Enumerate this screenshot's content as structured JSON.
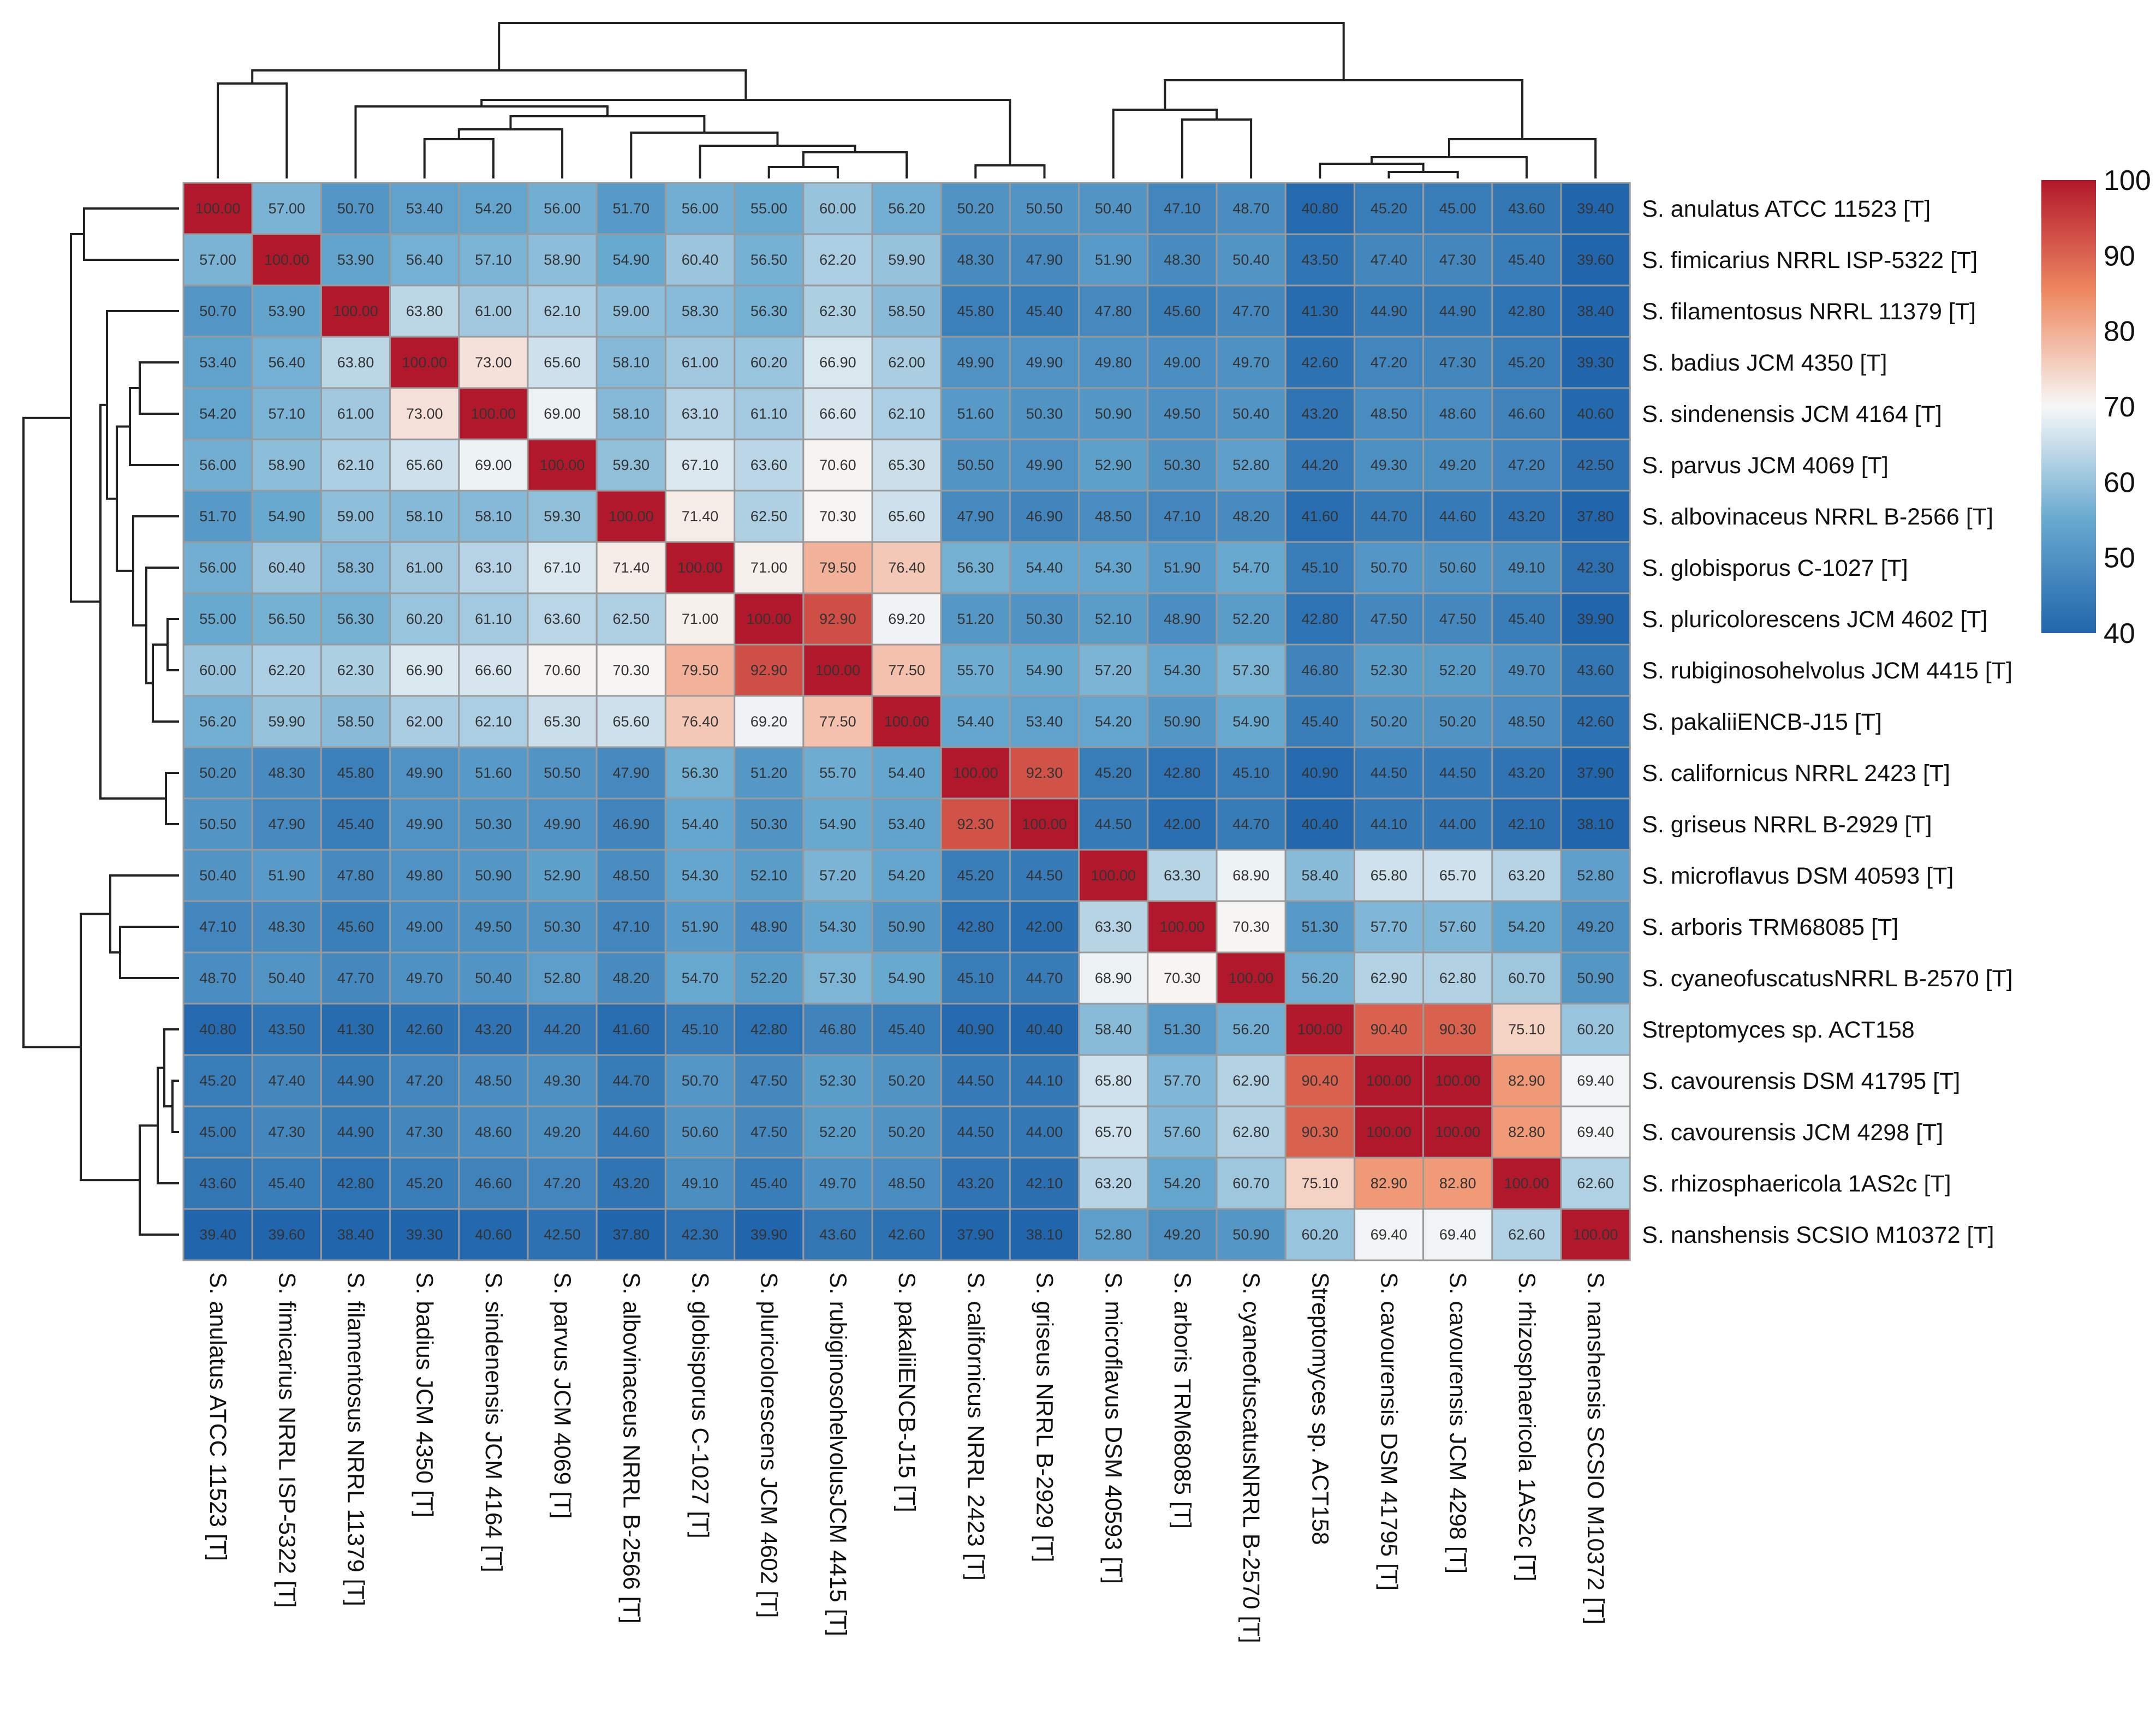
{
  "chart_data": {
    "type": "heatmap",
    "title": "",
    "labels": [
      "S.  anulatus ATCC 11523 [T]",
      "S.  fimicarius NRRL ISP-5322 [T]",
      "S.  filamentosus NRRL 11379 [T]",
      "S.  badius JCM 4350 [T]",
      "S.  sindenensis JCM 4164 [T]",
      "S.  parvus JCM 4069 [T]",
      "S.  albovinaceus NRRL B-2566 [T]",
      "S.  globisporus C-1027 [T]",
      "S.  pluricolorescens JCM 4602 [T]",
      "S.  rubiginosohelvolus JCM 4415 [T]",
      "S.  pakaliiENCB-J15 [T]",
      "S.  californicus NRRL 2423 [T]",
      "S.  griseus NRRL B-2929 [T]",
      "S.  microflavus DSM 40593 [T]",
      "S.  arboris TRM68085 [T]",
      "S.  cyaneofuscatusNRRL B-2570 [T]",
      "Streptomyces  sp. ACT158",
      "S.  cavourensis DSM 41795 [T]",
      "S.  cavourensis JCM 4298 [T]",
      "S.  rhizosphaericola 1AS2c [T]",
      "S.  nanshensis SCSIO M10372 [T]"
    ],
    "column_labels": [
      "S.  anulatus ATCC 11523 [T]",
      "S.  fimicarius NRRL ISP-5322 [T]",
      "S.  filamentosus NRRL 11379 [T]",
      "S.  badius JCM 4350 [T]",
      "S.  sindenensis JCM 4164 [T]",
      "S.  parvus JCM 4069 [T]",
      "S.  albovinaceus NRRL B-2566 [T]",
      "S.  globisporus C-1027 [T]",
      "S.  pluricolorescens JCM 4602 [T]",
      "S.  rubiginosohelvolusJCM 4415 [T]",
      "S.  pakaliiENCB-J15 [T]",
      "S.  californicus NRRL 2423 [T]",
      "S.  griseus NRRL B-2929 [T]",
      "S.  microflavus DSM 40593 [T]",
      "S.  arboris TRM68085 [T]",
      "S.  cyaneofuscatusNRRL B-2570 [T]",
      "Streptomyces  sp. ACT158",
      "S.  cavourensis DSM 41795 [T]",
      "S.  cavourensis JCM 4298 [T]",
      "S.  rhizosphaericola 1AS2c [T]",
      "S.  nanshensis SCSIO M10372 [T]"
    ],
    "values": [
      [
        100,
        57.0,
        50.7,
        53.4,
        54.2,
        56.0,
        51.7,
        56.0,
        55.0,
        60.0,
        56.2,
        50.2,
        50.5,
        50.4,
        47.1,
        48.7,
        40.8,
        45.2,
        45.0,
        43.6,
        39.4
      ],
      [
        57.0,
        100,
        53.9,
        56.4,
        57.1,
        58.9,
        54.9,
        60.4,
        56.5,
        62.2,
        59.9,
        48.3,
        47.9,
        51.9,
        48.3,
        50.4,
        43.5,
        47.4,
        47.3,
        45.4,
        39.6
      ],
      [
        50.7,
        53.9,
        100,
        63.8,
        61.0,
        62.1,
        59.0,
        58.3,
        56.3,
        62.3,
        58.5,
        45.8,
        45.4,
        47.8,
        45.6,
        47.7,
        41.3,
        44.9,
        44.9,
        42.8,
        38.4
      ],
      [
        53.4,
        56.4,
        63.8,
        100,
        73.0,
        65.6,
        58.1,
        61.0,
        60.2,
        66.9,
        62.0,
        49.9,
        49.9,
        49.8,
        49.0,
        49.7,
        42.6,
        47.2,
        47.3,
        45.2,
        39.3
      ],
      [
        54.2,
        57.1,
        61.0,
        73.0,
        100,
        69.0,
        58.1,
        63.1,
        61.1,
        66.6,
        62.1,
        51.6,
        50.3,
        50.9,
        49.5,
        50.4,
        43.2,
        48.5,
        48.6,
        46.6,
        40.6
      ],
      [
        56.0,
        58.9,
        62.1,
        65.6,
        69.0,
        100,
        59.3,
        67.1,
        63.6,
        70.6,
        65.3,
        50.5,
        49.9,
        52.9,
        50.3,
        52.8,
        44.2,
        49.3,
        49.2,
        47.2,
        42.5
      ],
      [
        51.7,
        54.9,
        59.0,
        58.1,
        58.1,
        59.3,
        100,
        71.4,
        62.5,
        70.3,
        65.6,
        47.9,
        46.9,
        48.5,
        47.1,
        48.2,
        41.6,
        44.7,
        44.6,
        43.2,
        37.8
      ],
      [
        56.0,
        60.4,
        58.3,
        61.0,
        63.1,
        67.1,
        71.4,
        100,
        71.0,
        79.5,
        76.4,
        56.3,
        54.4,
        54.3,
        51.9,
        54.7,
        45.1,
        50.7,
        50.6,
        49.1,
        42.3
      ],
      [
        55.0,
        56.5,
        56.3,
        60.2,
        61.1,
        63.6,
        62.5,
        71.0,
        100,
        92.9,
        69.2,
        51.2,
        50.3,
        52.1,
        48.9,
        52.2,
        42.8,
        47.5,
        47.5,
        45.4,
        39.9
      ],
      [
        60.0,
        62.2,
        62.3,
        66.9,
        66.6,
        70.6,
        70.3,
        79.5,
        92.9,
        100,
        77.5,
        55.7,
        54.9,
        57.2,
        54.3,
        57.3,
        46.8,
        52.3,
        52.2,
        49.7,
        43.6
      ],
      [
        56.2,
        59.9,
        58.5,
        62.0,
        62.1,
        65.3,
        65.6,
        76.4,
        69.2,
        77.5,
        100,
        54.4,
        53.4,
        54.2,
        50.9,
        54.9,
        45.4,
        50.2,
        50.2,
        48.5,
        42.6
      ],
      [
        50.2,
        48.3,
        45.8,
        49.9,
        51.6,
        50.5,
        47.9,
        56.3,
        51.2,
        55.7,
        54.4,
        100,
        92.3,
        45.2,
        42.8,
        45.1,
        40.9,
        44.5,
        44.5,
        43.2,
        37.9
      ],
      [
        50.5,
        47.9,
        45.4,
        49.9,
        50.3,
        49.9,
        46.9,
        54.4,
        50.3,
        54.9,
        53.4,
        92.3,
        100,
        44.5,
        42.0,
        44.7,
        40.4,
        44.1,
        44.0,
        42.1,
        38.1
      ],
      [
        50.4,
        51.9,
        47.8,
        49.8,
        50.9,
        52.9,
        48.5,
        54.3,
        52.1,
        57.2,
        54.2,
        45.2,
        44.5,
        100,
        63.3,
        68.9,
        58.4,
        65.8,
        65.7,
        63.2,
        52.8
      ],
      [
        47.1,
        48.3,
        45.6,
        49.0,
        49.5,
        50.3,
        47.1,
        51.9,
        48.9,
        54.3,
        50.9,
        42.8,
        42.0,
        63.3,
        100,
        70.3,
        51.3,
        57.7,
        57.6,
        54.2,
        49.2
      ],
      [
        48.7,
        50.4,
        47.7,
        49.7,
        50.4,
        52.8,
        48.2,
        54.7,
        52.2,
        57.3,
        54.9,
        45.1,
        44.7,
        68.9,
        70.3,
        100,
        56.2,
        62.9,
        62.8,
        60.7,
        50.9
      ],
      [
        40.8,
        43.5,
        41.3,
        42.6,
        43.2,
        44.2,
        41.6,
        45.1,
        42.8,
        46.8,
        45.4,
        40.9,
        40.4,
        58.4,
        51.3,
        56.2,
        100,
        90.4,
        90.3,
        75.1,
        60.2
      ],
      [
        45.2,
        47.4,
        44.9,
        47.2,
        48.5,
        49.3,
        44.7,
        50.7,
        47.5,
        52.3,
        50.2,
        44.5,
        44.1,
        65.8,
        57.7,
        62.9,
        90.4,
        100,
        100,
        82.9,
        69.4
      ],
      [
        45.0,
        47.3,
        44.9,
        47.3,
        48.6,
        49.2,
        44.6,
        50.6,
        47.5,
        52.2,
        50.2,
        44.5,
        44.0,
        65.7,
        57.6,
        62.8,
        90.3,
        100,
        100,
        82.8,
        69.4
      ],
      [
        43.6,
        45.4,
        42.8,
        45.2,
        46.6,
        47.2,
        43.2,
        49.1,
        45.4,
        49.7,
        48.5,
        43.2,
        42.1,
        63.2,
        54.2,
        60.7,
        75.1,
        82.9,
        82.8,
        100,
        62.6
      ],
      [
        39.4,
        39.6,
        38.4,
        39.3,
        40.6,
        42.5,
        37.8,
        42.3,
        39.9,
        43.6,
        42.6,
        37.9,
        38.1,
        52.8,
        49.2,
        50.9,
        60.2,
        69.4,
        69.4,
        62.6,
        100
      ]
    ],
    "value_range": [
      40,
      100
    ],
    "colorbar": {
      "ticks": [
        "100",
        "90",
        "80",
        "70",
        "60",
        "50",
        "40"
      ],
      "tick_values": [
        100,
        90,
        80,
        70,
        60,
        50,
        40
      ]
    },
    "colors": {
      "low": "#2166ac",
      "mid_low": "#67a9cf",
      "mid": "#f7f7f7",
      "mid_high": "#ef8a62",
      "high": "#b2182b",
      "grid": "#9a9a9a",
      "dendrogram": "#222222"
    },
    "dendrogram": "hierarchical clustering (rows and columns)",
    "xlabel": "",
    "ylabel": ""
  }
}
